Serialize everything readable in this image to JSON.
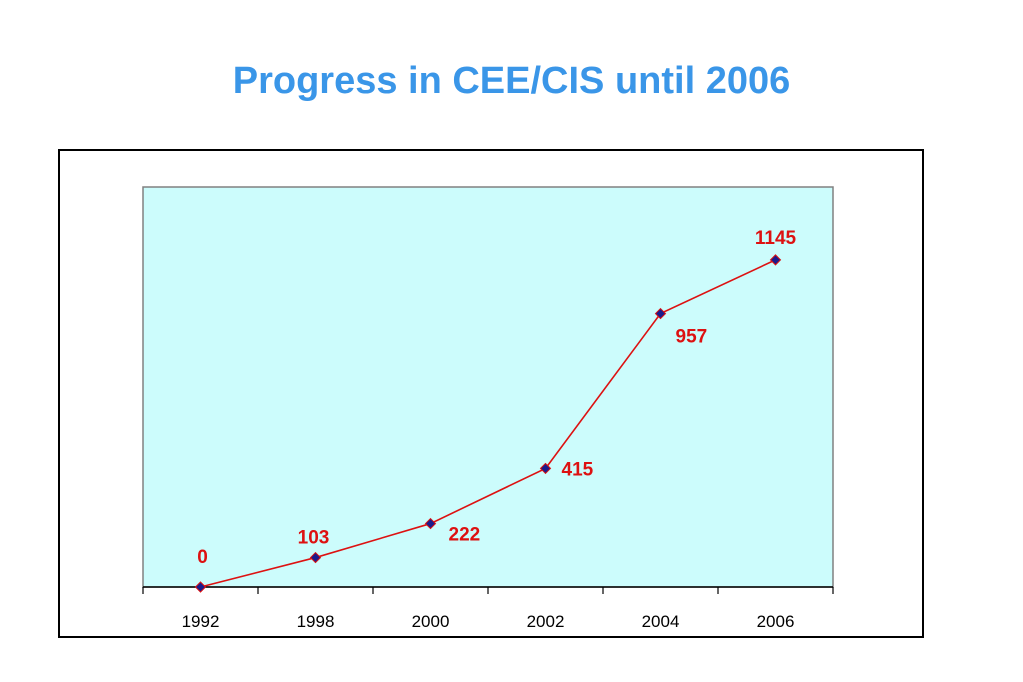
{
  "slide": {
    "title": "Progress in CEE/CIS until 2006"
  },
  "chart_data": {
    "type": "line",
    "categories": [
      "1992",
      "1998",
      "2000",
      "2002",
      "2004",
      "2006"
    ],
    "values": [
      0,
      103,
      222,
      415,
      957,
      1145
    ],
    "data_labels": [
      "0",
      "103",
      "222",
      "415",
      "957",
      "1145"
    ],
    "ylim": [
      0,
      1400
    ],
    "grid": false,
    "legend": "none",
    "colors": {
      "plot_background": "#ccfcfc",
      "line": "#dd1111",
      "marker_fill": "#1a1a8c",
      "data_label": "#dd1111",
      "plot_border": "#808080"
    }
  }
}
